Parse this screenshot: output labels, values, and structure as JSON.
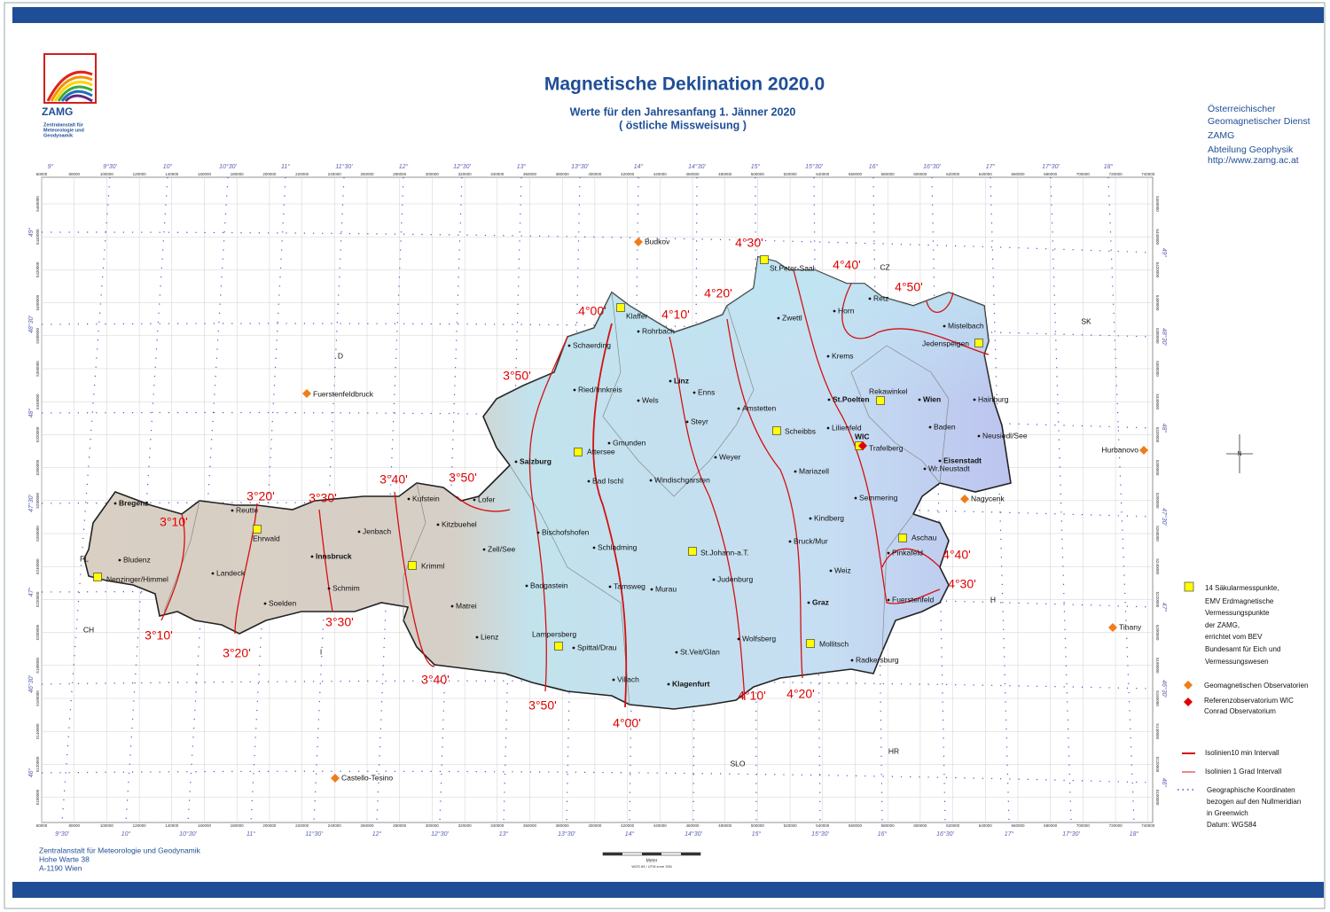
{
  "header": {
    "logo_name": "ZAMG",
    "logo_subtitle": [
      "Zentralanstalt für",
      "Meteorologie und",
      "Geodynamik"
    ],
    "title": "Magnetische Deklination 2020.0",
    "subtitle": [
      "Werte für den Jahresanfang 1. Jänner 2020",
      "( östliche Missweisung )"
    ],
    "institute": [
      "Österreichischer",
      "Geomagnetischer Dienst",
      "ZAMG",
      "Abteilung Geophysik",
      "http://www.zamg.ac.at"
    ]
  },
  "map": {
    "isoline_labels": [
      "4°30'",
      "4°40'",
      "4°50'",
      "4°20'",
      "4°10'",
      "4°00'",
      "3°50'",
      "3°50'",
      "3°40'",
      "3°30'",
      "3°20'",
      "3°10'",
      "3°10'",
      "3°20'",
      "3°30'",
      "3°40'",
      "3°50'",
      "4°00'",
      "4°10'",
      "4°20'",
      "4°40'",
      "4°30'"
    ],
    "secular_points": [
      "St.Peter-Saal",
      "Klaffer",
      "Jedenspeigen",
      "Rekawinkel",
      "Scheibbs",
      "Attersee",
      "Ehrwald",
      "Nenzinger/Himmel",
      "Krimml",
      "St.Johann-a.T.",
      "Aschau",
      "Lampersberg",
      "Mollitsch",
      "Trafelberg"
    ],
    "reference_observatory": "WIC",
    "observatories": [
      "Budkov",
      "Fuerstenfeldbruck",
      "Hurbanovo",
      "Nagycenk",
      "Tihany",
      "Castello-Tesino"
    ],
    "towns": [
      "Bregenz",
      "Bludenz",
      "Landeck",
      "Reutte",
      "Innsbruck",
      "Jenbach",
      "Schmim",
      "Soelden",
      "Kufstein",
      "Kitzbuehel",
      "Lofer",
      "Zell/See",
      "Matrei",
      "Lienz",
      "Badgastein",
      "Bischofshofen",
      "Salzburg",
      "Bad Ischl",
      "Gmunden",
      "Ried/Innkreis",
      "Schaerding",
      "Rohrbach",
      "Linz",
      "Enns",
      "Wels",
      "Steyr",
      "Weyer",
      "Windischgarsten",
      "Schladming",
      "Tamsweg",
      "Murau",
      "Judenburg",
      "Spittal/Drau",
      "Villach",
      "Klagenfurt",
      "St.Veit/Glan",
      "Wolfsberg",
      "Graz",
      "Weiz",
      "Bruck/Mur",
      "Kindberg",
      "Mariazell",
      "Semmering",
      "Amstetten",
      "Lilienfeld",
      "St.Poelten",
      "Wien",
      "Baden",
      "Wr.Neustadt",
      "Eisenstadt",
      "Neusiedl/See",
      "Hainburg",
      "Mistelbach",
      "Horn",
      "Zwettl",
      "Krems",
      "Retz",
      "Pinkafeld",
      "Fuerstenfeld",
      "Radkersburg"
    ],
    "countries": [
      "CZ",
      "SK",
      "D",
      "H",
      "CH",
      "FL",
      "I",
      "SLO",
      "HR"
    ],
    "north": "N",
    "graticule": {
      "top_lon": [
        "9°",
        "9°30'",
        "10°",
        "10°30'",
        "11°",
        "11°30'",
        "12°",
        "12°30'",
        "13°",
        "13°30'",
        "14°",
        "14°30'",
        "15°",
        "15°30'",
        "16°",
        "16°30'",
        "17°",
        "17°30'",
        "18°"
      ],
      "bottom_lon": [
        "9°30'",
        "10°",
        "10°30'",
        "11°",
        "11°30'",
        "12°",
        "12°30'",
        "13°",
        "13°30'",
        "14°",
        "14°30'",
        "15°",
        "15°30'",
        "16°",
        "16°30'",
        "17°",
        "17°30'",
        "18°"
      ],
      "lat": [
        "49°",
        "48°30'",
        "48°",
        "47°30'",
        "47°",
        "46°30'",
        "46°"
      ],
      "easting": [
        60000,
        80000,
        100000,
        120000,
        140000,
        160000,
        180000,
        200000,
        220000,
        240000,
        260000,
        280000,
        300000,
        320000,
        340000,
        360000,
        380000,
        400000,
        420000,
        440000,
        460000,
        480000,
        500000,
        520000,
        540000,
        560000,
        580000,
        600000,
        620000,
        640000,
        660000,
        680000,
        700000,
        720000,
        740000
      ],
      "northing": [
        5460000,
        5440000,
        5420000,
        5400000,
        5380000,
        5360000,
        5340000,
        5320000,
        5300000,
        5280000,
        5260000,
        5240000,
        5220000,
        5200000,
        5180000,
        5160000,
        5140000,
        5120000,
        5100000
      ]
    },
    "scale": {
      "unit": "Meter",
      "projection": "WGS 84 / UTM zone 33N"
    }
  },
  "legend": {
    "secular": [
      "14 Säkularmesspunkte,",
      "EMV Erdmagnetische",
      "Vermessungspunkte",
      "der ZAMG,",
      "errichtet vom BEV",
      "Bundesamt für Eich und",
      "Vermessungswesen"
    ],
    "observatories": "Geomagnetischen Observatorien",
    "reference": [
      "Referenzobservatorium WIC",
      "Conrad Observatorium"
    ],
    "isolines_10min": "Isolinien10 min Intervall",
    "isolines_1deg": "Isolinien 1 Grad  Intervall",
    "coordinates": [
      "Geographische Koordinaten",
      "bezogen auf den Nullmeridian",
      "in Greenwich",
      "Datum: WGS84"
    ]
  },
  "footer": [
    "Zentralanstalt für Meteorologie und Geodynamik",
    "Hohe Warte 38",
    "A-1190 Wien"
  ]
}
